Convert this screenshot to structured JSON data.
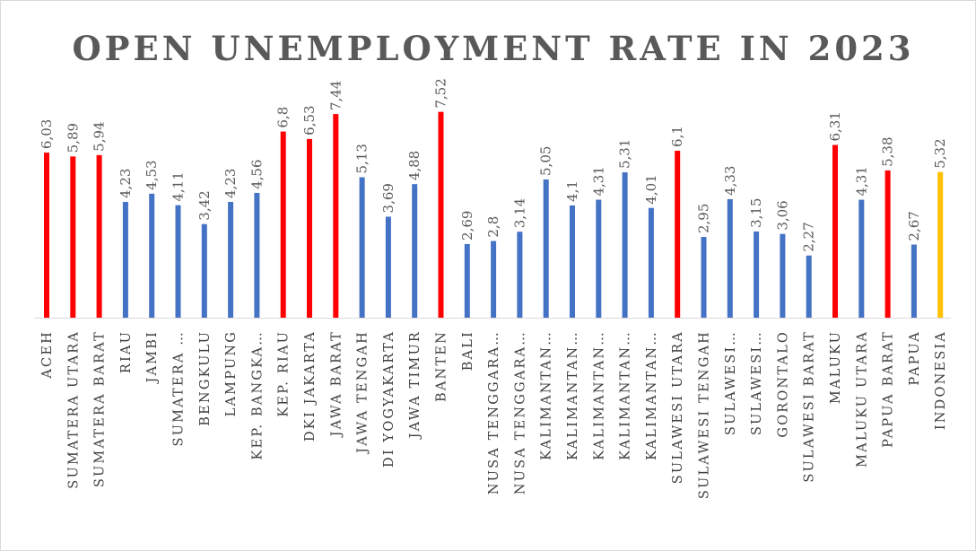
{
  "chart_data": {
    "type": "bar",
    "title": "OPEN UNEMPLOYMENT RATE IN 2023",
    "xlabel": "",
    "ylabel": "",
    "ylim": [
      0,
      8
    ],
    "grid": false,
    "legend": "none",
    "categories": [
      "ACEH",
      "SUMATERA UTARA",
      "SUMATERA BARAT",
      "RIAU",
      "JAMBI",
      "SUMATERA …",
      "BENGKULU",
      "LAMPUNG",
      "KEP. BANGKA…",
      "KEP. RIAU",
      "DKI JAKARTA",
      "JAWA BARAT",
      "JAWA TENGAH",
      "DI YOGYAKARTA",
      "JAWA TIMUR",
      "BANTEN",
      "BALI",
      "NUSA TENGGARA…",
      "NUSA TENGGARA…",
      "KALIMANTAN…",
      "KALIMANTAN…",
      "KALIMANTAN…",
      "KALIMANTAN…",
      "KALIMANTAN…",
      "SULAWESI UTARA",
      "SULAWESI TENGAH",
      "SULAWESI…",
      "SULAWESI…",
      "GORONTALO",
      "SULAWESI BARAT",
      "MALUKU",
      "MALUKU UTARA",
      "PAPUA BARAT",
      "PAPUA",
      "INDONESIA"
    ],
    "values": [
      6.03,
      5.89,
      5.94,
      4.23,
      4.53,
      4.11,
      3.42,
      4.23,
      4.56,
      6.8,
      6.53,
      7.44,
      5.13,
      3.69,
      4.88,
      7.52,
      2.69,
      2.8,
      3.14,
      5.05,
      4.1,
      4.31,
      5.31,
      4.01,
      6.1,
      2.95,
      4.33,
      3.15,
      3.06,
      2.27,
      6.31,
      4.31,
      5.38,
      2.67,
      5.32
    ],
    "value_labels": [
      "6,03",
      "5,89",
      "5,94",
      "4,23",
      "4,53",
      "4,11",
      "3,42",
      "4,23",
      "4,56",
      "6,8",
      "6,53",
      "7,44",
      "5,13",
      "3,69",
      "4,88",
      "7,52",
      "2,69",
      "2,8",
      "3,14",
      "5,05",
      "4,1",
      "4,31",
      "5,31",
      "4,01",
      "6,1",
      "2,95",
      "4,33",
      "3,15",
      "3,06",
      "2,27",
      "6,31",
      "4,31",
      "5,38",
      "2,67",
      "5,32"
    ],
    "bar_colors": [
      "#ff0000",
      "#ff0000",
      "#ff0000",
      "#4472c4",
      "#4472c4",
      "#4472c4",
      "#4472c4",
      "#4472c4",
      "#4472c4",
      "#ff0000",
      "#ff0000",
      "#ff0000",
      "#4472c4",
      "#4472c4",
      "#4472c4",
      "#ff0000",
      "#4472c4",
      "#4472c4",
      "#4472c4",
      "#4472c4",
      "#4472c4",
      "#4472c4",
      "#4472c4",
      "#4472c4",
      "#ff0000",
      "#4472c4",
      "#4472c4",
      "#4472c4",
      "#4472c4",
      "#4472c4",
      "#ff0000",
      "#4472c4",
      "#ff0000",
      "#4472c4",
      "#ffc000"
    ],
    "colors": {
      "above_national": "#ff0000",
      "below_national": "#4472c4",
      "national": "#ffc000",
      "title": "#595959",
      "axis": "#d9d9d9"
    }
  }
}
